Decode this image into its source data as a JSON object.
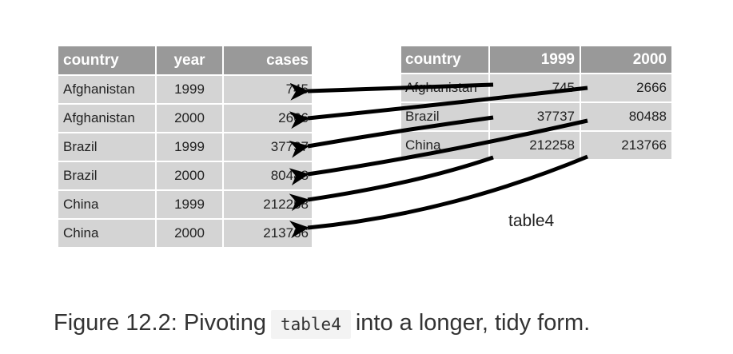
{
  "long_table": {
    "headers": [
      "country",
      "year",
      "cases"
    ],
    "rows": [
      [
        "Afghanistan",
        "1999",
        "745"
      ],
      [
        "Afghanistan",
        "2000",
        "2666"
      ],
      [
        "Brazil",
        "1999",
        "37737"
      ],
      [
        "Brazil",
        "2000",
        "80488"
      ],
      [
        "China",
        "1999",
        "212258"
      ],
      [
        "China",
        "2000",
        "213766"
      ]
    ]
  },
  "wide_table": {
    "name": "table4",
    "headers": [
      "country",
      "1999",
      "2000"
    ],
    "rows": [
      [
        "Afghanistan",
        "745",
        "2666"
      ],
      [
        "Brazil",
        "37737",
        "80488"
      ],
      [
        "China",
        "212258",
        "213766"
      ]
    ]
  },
  "caption": {
    "prefix": "Figure 12.2: Pivoting",
    "code": "table4",
    "suffix": "into a longer, tidy form."
  },
  "colors": {
    "header": "#999999",
    "cell": "#d4d4d4",
    "arrow": "#000000"
  }
}
